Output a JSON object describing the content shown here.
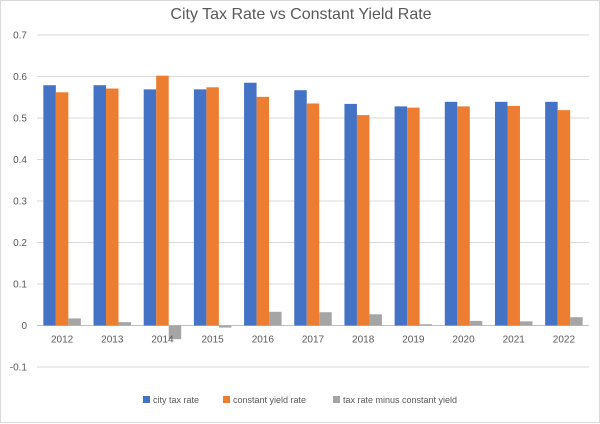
{
  "chart_data": {
    "type": "bar",
    "title": "City Tax Rate vs Constant Yield Rate",
    "xlabel": "",
    "ylabel": "",
    "categories": [
      "2012",
      "2013",
      "2014",
      "2015",
      "2016",
      "2017",
      "2018",
      "2019",
      "2020",
      "2021",
      "2022"
    ],
    "series": [
      {
        "name": "city tax rate",
        "color": "#4472c4",
        "values": [
          0.579,
          0.579,
          0.569,
          0.569,
          0.585,
          0.567,
          0.534,
          0.528,
          0.539,
          0.539,
          0.539
        ]
      },
      {
        "name": "constant yield rate",
        "color": "#ed7d31",
        "values": [
          0.562,
          0.571,
          0.602,
          0.574,
          0.551,
          0.535,
          0.507,
          0.525,
          0.528,
          0.529,
          0.519
        ]
      },
      {
        "name": "tax rate minus constant yield",
        "color": "#a5a5a5",
        "values": [
          0.017,
          0.008,
          -0.033,
          -0.005,
          0.033,
          0.032,
          0.027,
          0.003,
          0.011,
          0.01,
          0.02
        ]
      }
    ],
    "ylim": [
      -0.1,
      0.7
    ],
    "yticks": [
      "-0.1",
      "0",
      "0.1",
      "0.2",
      "0.3",
      "0.4",
      "0.5",
      "0.6",
      "0.7"
    ],
    "grid": true,
    "legend_position": "bottom"
  }
}
